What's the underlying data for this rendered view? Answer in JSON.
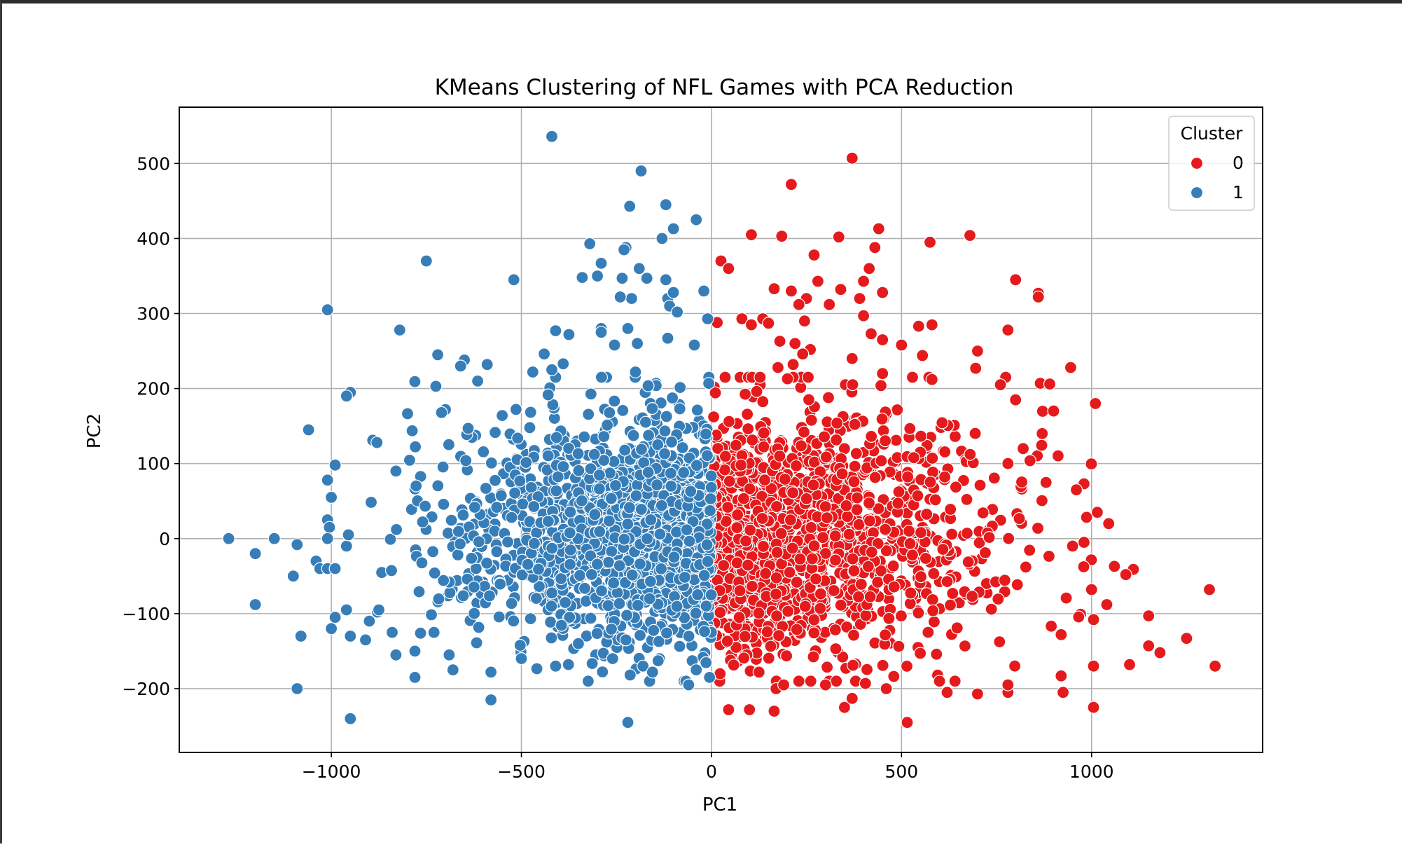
{
  "chart_data": {
    "type": "scatter",
    "title": "KMeans Clustering of NFL Games with PCA Reduction",
    "xlabel": "PC1",
    "ylabel": "PC2",
    "xlim": [
      -1400,
      1450
    ],
    "ylim": [
      -285,
      575
    ],
    "xticks": [
      -1000,
      -500,
      0,
      500,
      1000
    ],
    "xtick_labels": [
      "−1000",
      "−500",
      "0",
      "500",
      "1000"
    ],
    "yticks": [
      -200,
      -100,
      0,
      100,
      200,
      300,
      400,
      500
    ],
    "ytick_labels": [
      "−200",
      "−100",
      "0",
      "100",
      "200",
      "300",
      "400",
      "500"
    ],
    "grid": true,
    "legend": {
      "title": "Cluster",
      "position": "top-right"
    },
    "series": [
      {
        "name": "0",
        "color": "#e41a1c",
        "points": [
          [
            370,
            507
          ],
          [
            210,
            472
          ],
          [
            440,
            413
          ],
          [
            105,
            405
          ],
          [
            185,
            403
          ],
          [
            335,
            402
          ],
          [
            575,
            395
          ],
          [
            680,
            404
          ],
          [
            430,
            388
          ],
          [
            270,
            378
          ],
          [
            25,
            370
          ],
          [
            45,
            360
          ],
          [
            415,
            360
          ],
          [
            400,
            343
          ],
          [
            280,
            343
          ],
          [
            800,
            345
          ],
          [
            165,
            333
          ],
          [
            210,
            330
          ],
          [
            250,
            320
          ],
          [
            340,
            332
          ],
          [
            450,
            328
          ],
          [
            860,
            327
          ],
          [
            390,
            320
          ],
          [
            860,
            322
          ],
          [
            310,
            312
          ],
          [
            230,
            312
          ],
          [
            135,
            293
          ],
          [
            150,
            287
          ],
          [
            245,
            290
          ],
          [
            80,
            293
          ],
          [
            400,
            297
          ],
          [
            580,
            285
          ],
          [
            545,
            283
          ],
          [
            15,
            288
          ],
          [
            105,
            285
          ],
          [
            420,
            273
          ],
          [
            220,
            260
          ],
          [
            450,
            265
          ],
          [
            500,
            258
          ],
          [
            180,
            263
          ],
          [
            260,
            252
          ],
          [
            700,
            250
          ],
          [
            780,
            278
          ],
          [
            240,
            246
          ],
          [
            555,
            244
          ],
          [
            370,
            240
          ],
          [
            215,
            232
          ],
          [
            175,
            228
          ],
          [
            695,
            227
          ],
          [
            945,
            228
          ],
          [
            450,
            220
          ],
          [
            200,
            213
          ],
          [
            580,
            212
          ],
          [
            760,
            205
          ],
          [
            865,
            207
          ],
          [
            890,
            206
          ]
        ],
        "cloud": {
          "x_range": [
            0,
            1050
          ],
          "y_mean": 5,
          "y_sd": 78,
          "count": 1500
        },
        "outliers": [
          [
            1310,
            -68
          ],
          [
            1325,
            -170
          ],
          [
            1250,
            -133
          ],
          [
            1150,
            -143
          ],
          [
            1180,
            -152
          ],
          [
            1150,
            -103
          ],
          [
            1100,
            -168
          ],
          [
            1060,
            -37
          ],
          [
            1110,
            -41
          ],
          [
            1090,
            -48
          ],
          [
            1045,
            20
          ],
          [
            1015,
            35
          ],
          [
            1010,
            180
          ],
          [
            1005,
            -225
          ],
          [
            1005,
            -170
          ],
          [
            1005,
            -108
          ],
          [
            1000,
            -68
          ],
          [
            1040,
            -88
          ],
          [
            925,
            -205
          ],
          [
            920,
            -183
          ],
          [
            920,
            -128
          ],
          [
            950,
            -10
          ],
          [
            980,
            -5
          ],
          [
            980,
            73
          ],
          [
            960,
            65
          ],
          [
            780,
            -205
          ],
          [
            780,
            -195
          ],
          [
            595,
            -182
          ],
          [
            600,
            -190
          ],
          [
            700,
            -207
          ],
          [
            350,
            -225
          ],
          [
            370,
            -213
          ],
          [
            515,
            -245
          ],
          [
            620,
            -205
          ],
          [
            460,
            -200
          ],
          [
            405,
            -193
          ],
          [
            300,
            -195
          ],
          [
            165,
            -230
          ],
          [
            100,
            -228
          ],
          [
            45,
            -228
          ],
          [
            170,
            -200
          ],
          [
            190,
            -195
          ],
          [
            125,
            -178
          ],
          [
            780,
            100
          ],
          [
            820,
            120
          ],
          [
            800,
            185
          ],
          [
            900,
            170
          ],
          [
            870,
            140
          ]
        ]
      },
      {
        "name": "1",
        "color": "#377eb8",
        "points": [
          [
            -420,
            536
          ],
          [
            -185,
            490
          ],
          [
            -120,
            445
          ],
          [
            -215,
            443
          ],
          [
            -40,
            425
          ],
          [
            -100,
            413
          ],
          [
            -320,
            393
          ],
          [
            -130,
            400
          ],
          [
            -225,
            388
          ],
          [
            -230,
            385
          ],
          [
            -290,
            367
          ],
          [
            -190,
            360
          ],
          [
            -170,
            347
          ],
          [
            -1010,
            305
          ],
          [
            -520,
            345
          ],
          [
            -340,
            348
          ],
          [
            -300,
            350
          ],
          [
            -235,
            347
          ],
          [
            -120,
            345
          ],
          [
            -750,
            370
          ],
          [
            -210,
            320
          ],
          [
            -240,
            322
          ],
          [
            -115,
            320
          ],
          [
            -100,
            328
          ],
          [
            -20,
            330
          ],
          [
            -110,
            310
          ],
          [
            -90,
            302
          ],
          [
            -10,
            293
          ],
          [
            -820,
            278
          ],
          [
            -290,
            280
          ],
          [
            -220,
            280
          ],
          [
            -290,
            275
          ],
          [
            -410,
            277
          ],
          [
            -375,
            272
          ],
          [
            -115,
            267
          ],
          [
            -45,
            258
          ],
          [
            -195,
            260
          ],
          [
            -255,
            258
          ],
          [
            -720,
            245
          ],
          [
            -440,
            246
          ],
          [
            -390,
            233
          ],
          [
            -650,
            238
          ],
          [
            -660,
            230
          ],
          [
            -590,
            232
          ],
          [
            -200,
            222
          ],
          [
            -420,
            225
          ],
          [
            -470,
            222
          ],
          [
            -950,
            195
          ],
          [
            -960,
            190
          ],
          [
            -725,
            203
          ],
          [
            -615,
            210
          ],
          [
            -700,
            172
          ],
          [
            -710,
            168
          ],
          [
            -640,
            147
          ],
          [
            -1060,
            145
          ],
          [
            -880,
            128
          ],
          [
            -830,
            90
          ],
          [
            -990,
            98
          ],
          [
            -1010,
            78
          ],
          [
            -1000,
            55
          ]
        ],
        "cloud": {
          "x_range": [
            -900,
            0
          ],
          "y_mean": 10,
          "y_sd": 75,
          "count": 1500
        },
        "outliers": [
          [
            -1270,
            0
          ],
          [
            -1200,
            -20
          ],
          [
            -1150,
            0
          ],
          [
            -1100,
            -50
          ],
          [
            -1090,
            -8
          ],
          [
            -1080,
            -130
          ],
          [
            -1090,
            -200
          ],
          [
            -1200,
            -88
          ],
          [
            -1040,
            -30
          ],
          [
            -1030,
            -40
          ],
          [
            -1010,
            -40
          ],
          [
            -990,
            -40
          ],
          [
            -1010,
            25
          ],
          [
            -1005,
            15
          ],
          [
            -1010,
            0
          ],
          [
            -960,
            -10
          ],
          [
            -955,
            5
          ],
          [
            -950,
            -240
          ],
          [
            -990,
            -105
          ],
          [
            -1000,
            -120
          ],
          [
            -960,
            -95
          ],
          [
            -950,
            -130
          ],
          [
            -910,
            -135
          ],
          [
            -875,
            -95
          ],
          [
            -900,
            -110
          ],
          [
            -840,
            -125
          ],
          [
            -830,
            -155
          ],
          [
            -780,
            -150
          ],
          [
            -780,
            -185
          ],
          [
            -730,
            -125
          ],
          [
            -690,
            -155
          ],
          [
            -680,
            -175
          ],
          [
            -580,
            -215
          ],
          [
            -580,
            -178
          ],
          [
            -500,
            -160
          ],
          [
            -410,
            -170
          ],
          [
            -220,
            -245
          ],
          [
            -180,
            -170
          ],
          [
            -155,
            -178
          ],
          [
            -60,
            -195
          ],
          [
            -5,
            -185
          ],
          [
            -40,
            -175
          ],
          [
            -350,
            -140
          ],
          [
            -260,
            -160
          ]
        ]
      }
    ]
  }
}
